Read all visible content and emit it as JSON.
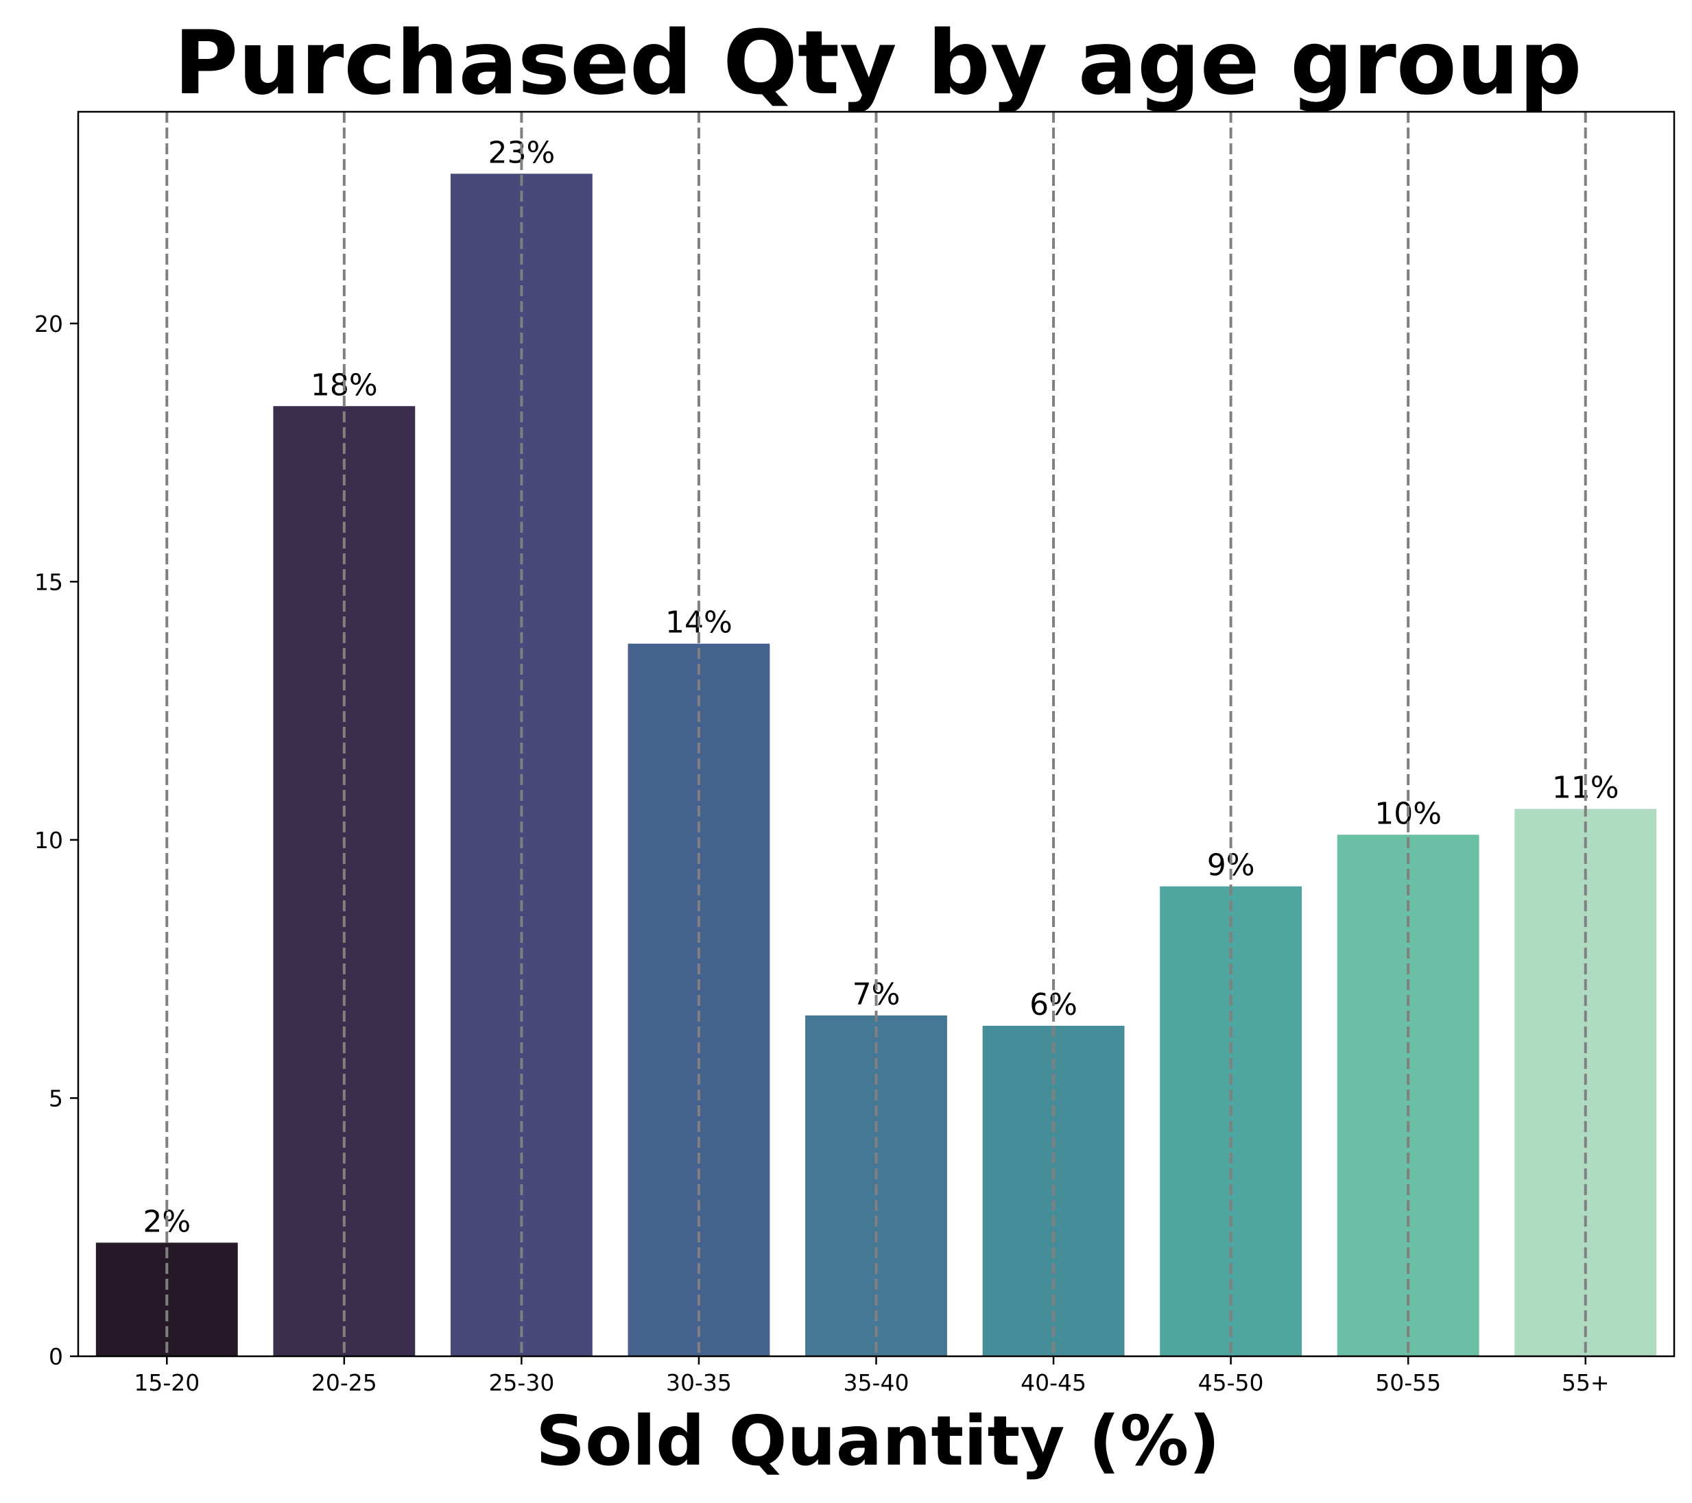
{
  "chart_data": {
    "type": "bar",
    "title": "Purchased Qty by age group",
    "xlabel": "Sold Quantity (%)",
    "ylabel": "",
    "categories": [
      "15-20",
      "20-25",
      "25-30",
      "30-35",
      "35-40",
      "40-45",
      "45-50",
      "50-55",
      "55+"
    ],
    "values": [
      2.2,
      18.4,
      22.9,
      13.8,
      6.6,
      6.4,
      9.1,
      10.1,
      10.6
    ],
    "data_labels": [
      "2%",
      "18%",
      "23%",
      "14%",
      "7%",
      "6%",
      "9%",
      "10%",
      "11%"
    ],
    "colors": [
      "#271a28",
      "#3b2e4c",
      "#48497a",
      "#45618d",
      "#457894",
      "#458d98",
      "#4fa6a0",
      "#6bbfa4",
      "#aedbc1"
    ],
    "ylim": [
      0,
      24.1
    ],
    "yticks": [
      0,
      5,
      10,
      15,
      20
    ],
    "grid": "vertical dashed at categories",
    "grid_color": "#808080",
    "legend": "none"
  }
}
